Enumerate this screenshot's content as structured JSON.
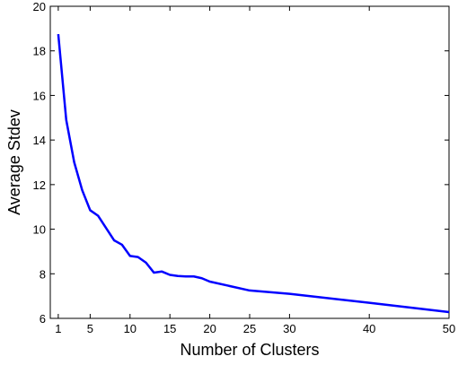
{
  "chart_data": {
    "type": "line",
    "x_label": "Number of Clusters",
    "y_label": "Average Stdev",
    "x": [
      1,
      2,
      3,
      4,
      5,
      6,
      7,
      8,
      9,
      10,
      11,
      12,
      13,
      14,
      15,
      16,
      17,
      18,
      19,
      20,
      25,
      30,
      40,
      50
    ],
    "series": [
      {
        "name": "Average Stdev",
        "color": "#0000ff",
        "values": [
          18.75,
          14.9,
          13.0,
          11.75,
          10.85,
          10.6,
          10.05,
          9.5,
          9.3,
          8.8,
          8.75,
          8.5,
          8.05,
          8.1,
          7.95,
          7.9,
          7.88,
          7.88,
          7.8,
          7.65,
          7.25,
          7.1,
          6.7,
          6.28
        ]
      }
    ],
    "xlim": [
      0,
      50
    ],
    "xticks": [
      1,
      5,
      10,
      15,
      20,
      25,
      30,
      40,
      50
    ],
    "ylim": [
      6,
      20
    ],
    "yticks": [
      6,
      8,
      10,
      12,
      14,
      16,
      18,
      20
    ],
    "grid": false
  }
}
